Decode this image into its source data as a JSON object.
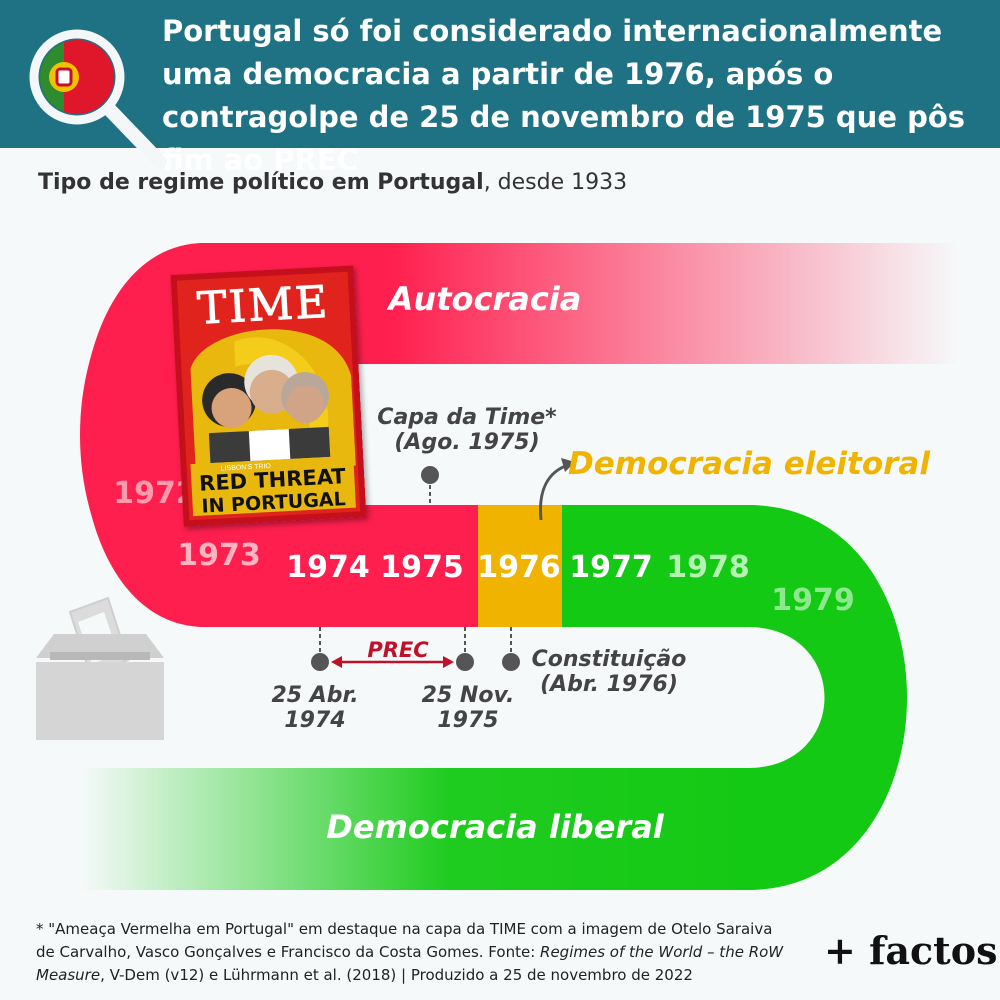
{
  "header": {
    "title": "Portugal só foi considerado internacionalmente uma democracia a partir de 1976, após o contragolpe de 25 de novembro de 1975 que pôs fim ao PREC"
  },
  "subtitle": {
    "bold": "Tipo de regime político em Portugal",
    "rest": ", desde 1933"
  },
  "chart_data": {
    "type": "timeline",
    "categories": [
      "Autocracia",
      "Democracia eleitoral",
      "Democracia liberal"
    ],
    "years": [
      {
        "year": "1972",
        "regime": "Autocracia"
      },
      {
        "year": "1973",
        "regime": "Autocracia"
      },
      {
        "year": "1974",
        "regime": "Autocracia"
      },
      {
        "year": "1975",
        "regime": "Autocracia"
      },
      {
        "year": "1976",
        "regime": "Democracia eleitoral"
      },
      {
        "year": "1977",
        "regime": "Democracia liberal"
      },
      {
        "year": "1978",
        "regime": "Democracia liberal"
      },
      {
        "year": "1979",
        "regime": "Democracia liberal"
      }
    ],
    "colors": {
      "Autocracia": "#ff1f4e",
      "Democracia eleitoral": "#f0b400",
      "Democracia liberal": "#14c914"
    },
    "annotations": {
      "time_cover_l1": "Capa da Time*",
      "time_cover_l2": "(Ago. 1975)",
      "apr_l1": "25 Abr.",
      "apr_l2": "1974",
      "nov_l1": "25 Nov.",
      "nov_l2": "1975",
      "const_l1": "Constituição",
      "const_l2": "(Abr. 1976)",
      "prec": "PREC"
    }
  },
  "time_cover": {
    "masthead": "TIME",
    "headline_l1": "RED THREAT",
    "headline_l2": "IN PORTUGAL",
    "small": "LISBON'S TRIO"
  },
  "footer": {
    "line1": "* \"Ameaça Vermelha em Portugal\" em destaque na capa da TIME com a imagem de Otelo Saraiva",
    "line2": "de Carvalho, Vasco Gonçalves e Francisco da Costa Gomes. Fonte: ",
    "source_italic": "Regimes of the World – the RoW Measure",
    "line3": ", V-Dem (v12) e Lührmann et al. (2018) | Produzido a 25 de novembro de 2022"
  },
  "brand": "+ factos"
}
